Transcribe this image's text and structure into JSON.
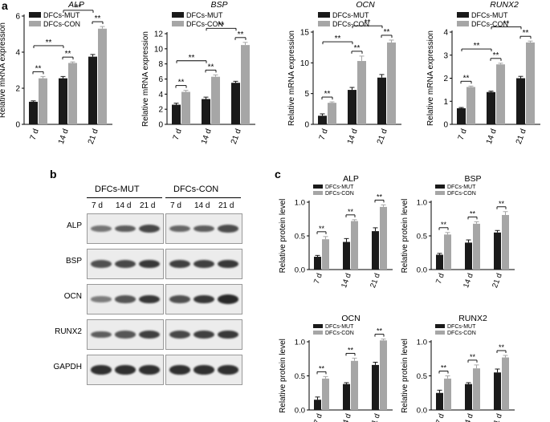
{
  "panel_labels": {
    "a": "a",
    "b": "b",
    "c": "c"
  },
  "colors": {
    "mut": "#1a1a1a",
    "con": "#a6a6a6",
    "axis": "#000000"
  },
  "legend": [
    "DFCs-MUT",
    "DFCs-CON"
  ],
  "blot": {
    "group_labels": [
      "DFCs-MUT",
      "DFCs-CON"
    ],
    "lane_labels": [
      "7 d",
      "14 d",
      "21 d"
    ],
    "rows": [
      {
        "label": "ALP",
        "intensity": [
          0.45,
          0.6,
          0.75,
          0.55,
          0.6,
          0.72
        ]
      },
      {
        "label": "BSP",
        "intensity": [
          0.7,
          0.75,
          0.85,
          0.8,
          0.8,
          0.85
        ]
      },
      {
        "label": "OCN",
        "intensity": [
          0.4,
          0.65,
          0.85,
          0.7,
          0.85,
          0.95
        ]
      },
      {
        "label": "RUNX2",
        "intensity": [
          0.6,
          0.65,
          0.8,
          0.75,
          0.8,
          0.85
        ]
      },
      {
        "label": "GAPDH",
        "intensity": [
          0.9,
          0.9,
          0.9,
          0.9,
          0.9,
          0.9
        ]
      }
    ]
  },
  "chart_data": [
    {
      "type": "bar",
      "title": "ALP",
      "ylabel": "Relative mRNA expression",
      "xlabel": "",
      "categories": [
        "7 d",
        "14 d",
        "21 d"
      ],
      "ylim": [
        0,
        6
      ],
      "yticks": [
        0,
        2,
        4,
        6
      ],
      "series": [
        {
          "name": "DFCs-MUT",
          "values": [
            1.25,
            2.55,
            3.75
          ],
          "errors": [
            0.05,
            0.1,
            0.12
          ]
        },
        {
          "name": "DFCs-CON",
          "values": [
            2.55,
            3.4,
            5.3
          ],
          "errors": [
            0.1,
            0.06,
            0.12
          ]
        }
      ],
      "significance": [
        "**",
        "**",
        "**",
        "**",
        "**"
      ],
      "legend": "top-left"
    },
    {
      "type": "bar",
      "title": "BSP",
      "ylabel": "Relative mRNA expression",
      "xlabel": "",
      "categories": [
        "7 d",
        "14 d",
        "21 d"
      ],
      "ylim": [
        0,
        12
      ],
      "yticks": [
        0,
        2,
        4,
        6,
        8,
        10,
        12
      ],
      "series": [
        {
          "name": "DFCs-MUT",
          "values": [
            2.6,
            3.35,
            5.5
          ],
          "errors": [
            0.2,
            0.25,
            0.2
          ]
        },
        {
          "name": "DFCs-CON",
          "values": [
            4.3,
            6.3,
            10.5
          ],
          "errors": [
            0.2,
            0.25,
            0.35
          ]
        }
      ],
      "significance": [
        "**",
        "**",
        "**",
        "**",
        "**"
      ],
      "legend": "top-left"
    },
    {
      "type": "bar",
      "title": "OCN",
      "ylabel": "Relative mRNA expression",
      "xlabel": "",
      "categories": [
        "7 d",
        "14 d",
        "21 d"
      ],
      "ylim": [
        0,
        15
      ],
      "yticks": [
        0,
        5,
        10,
        15
      ],
      "series": [
        {
          "name": "DFCs-MUT",
          "values": [
            1.4,
            5.6,
            7.6
          ],
          "errors": [
            0.3,
            0.4,
            0.5
          ]
        },
        {
          "name": "DFCs-CON",
          "values": [
            3.5,
            10.3,
            13.3
          ],
          "errors": [
            0.15,
            0.8,
            0.4
          ]
        }
      ],
      "significance": [
        "**",
        "**",
        "**",
        "**",
        "**"
      ],
      "legend": "top-left"
    },
    {
      "type": "bar",
      "title": "RUNX2",
      "ylabel": "Relative mRNA expression",
      "xlabel": "",
      "categories": [
        "7 d",
        "14 d",
        "21 d"
      ],
      "ylim": [
        0,
        4
      ],
      "yticks": [
        0,
        1,
        2,
        3,
        4
      ],
      "series": [
        {
          "name": "DFCs-MUT",
          "values": [
            0.7,
            1.4,
            2.0
          ],
          "errors": [
            0.03,
            0.04,
            0.08
          ]
        },
        {
          "name": "DFCs-CON",
          "values": [
            1.62,
            2.6,
            3.55
          ],
          "errors": [
            0.04,
            0.05,
            0.06
          ]
        }
      ],
      "significance": [
        "**",
        "**",
        "**",
        "**",
        "**"
      ],
      "legend": "top-left"
    },
    {
      "type": "bar",
      "title": "ALP",
      "ylabel": "Relative protein level",
      "xlabel": "",
      "categories": [
        "7 d",
        "14 d",
        "21 d"
      ],
      "ylim": [
        0,
        1.0
      ],
      "yticks": [
        0,
        0.5,
        1.0
      ],
      "series": [
        {
          "name": "DFCs-MUT",
          "values": [
            0.19,
            0.41,
            0.57
          ],
          "errors": [
            0.02,
            0.05,
            0.05
          ]
        },
        {
          "name": "DFCs-CON",
          "values": [
            0.45,
            0.72,
            0.93
          ],
          "errors": [
            0.04,
            0.02,
            0.03
          ]
        }
      ],
      "significance": [
        "**",
        "**",
        "**"
      ],
      "legend": "top-left"
    },
    {
      "type": "bar",
      "title": "BSP",
      "ylabel": "Relative protein level",
      "xlabel": "",
      "categories": [
        "7 d",
        "14 d",
        "21 d"
      ],
      "ylim": [
        0,
        1.0
      ],
      "yticks": [
        0,
        0.5,
        1.0
      ],
      "series": [
        {
          "name": "DFCs-MUT",
          "values": [
            0.22,
            0.4,
            0.55
          ],
          "errors": [
            0.02,
            0.04,
            0.03
          ]
        },
        {
          "name": "DFCs-CON",
          "values": [
            0.52,
            0.68,
            0.81
          ],
          "errors": [
            0.03,
            0.03,
            0.05
          ]
        }
      ],
      "significance": [
        "**",
        "**",
        "**"
      ],
      "legend": "top-left"
    },
    {
      "type": "bar",
      "title": "OCN",
      "ylabel": "Relative protein level",
      "xlabel": "",
      "categories": [
        "7 d",
        "14 d",
        "21 d"
      ],
      "ylim": [
        0,
        1.0
      ],
      "yticks": [
        0,
        0.5,
        1.0
      ],
      "series": [
        {
          "name": "DFCs-MUT",
          "values": [
            0.15,
            0.38,
            0.66
          ],
          "errors": [
            0.04,
            0.02,
            0.04
          ]
        },
        {
          "name": "DFCs-CON",
          "values": [
            0.46,
            0.72,
            1.02
          ],
          "errors": [
            0.03,
            0.04,
            0.02
          ]
        }
      ],
      "significance": [
        "**",
        "**",
        "**"
      ],
      "legend": "top-left"
    },
    {
      "type": "bar",
      "title": "RUNX2",
      "ylabel": "Relative protein level",
      "xlabel": "",
      "categories": [
        "7 d",
        "14 d",
        "21 d"
      ],
      "ylim": [
        0,
        1.0
      ],
      "yticks": [
        0,
        0.5,
        1.0
      ],
      "series": [
        {
          "name": "DFCs-MUT",
          "values": [
            0.25,
            0.38,
            0.55
          ],
          "errors": [
            0.04,
            0.02,
            0.05
          ]
        },
        {
          "name": "DFCs-CON",
          "values": [
            0.46,
            0.61,
            0.77
          ],
          "errors": [
            0.04,
            0.05,
            0.03
          ]
        }
      ],
      "significance": [
        "**",
        "**",
        "**"
      ],
      "legend": "top-left"
    }
  ]
}
